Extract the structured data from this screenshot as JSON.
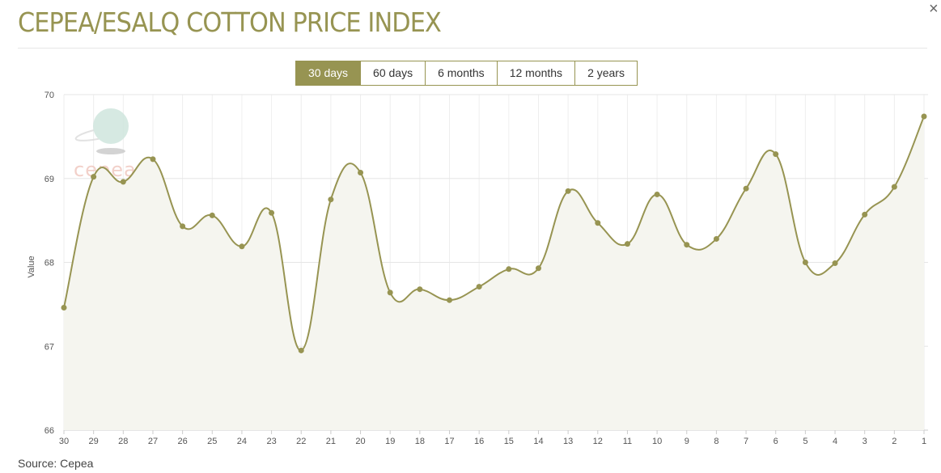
{
  "title": "CEPEA/ESALQ COTTON PRICE INDEX",
  "close_label": "×",
  "range_buttons": [
    {
      "label": "30 days",
      "active": true
    },
    {
      "label": "60 days",
      "active": false
    },
    {
      "label": "6 months",
      "active": false
    },
    {
      "label": "12 months",
      "active": false
    },
    {
      "label": "2 years",
      "active": false
    }
  ],
  "logo_text": "cepea",
  "source": "Source: Cepea",
  "colors": {
    "accent": "#979452",
    "fill": "#f5f5ef",
    "grid": "#e9e9e9"
  },
  "chart_data": {
    "type": "area",
    "title": "CEPEA/ESALQ COTTON PRICE INDEX",
    "xlabel": "",
    "ylabel": "Value",
    "ylim": [
      66,
      70
    ],
    "yticks": [
      "66",
      "67",
      "68",
      "69",
      "70"
    ],
    "grid": true,
    "categories": [
      "30",
      "29",
      "28",
      "27",
      "26",
      "25",
      "24",
      "23",
      "22",
      "21",
      "20",
      "19",
      "18",
      "17",
      "16",
      "15",
      "14",
      "13",
      "12",
      "11",
      "10",
      "9",
      "8",
      "7",
      "6",
      "5",
      "4",
      "3",
      "2",
      "1"
    ],
    "values": [
      67.46,
      69.02,
      68.96,
      69.23,
      68.43,
      68.56,
      68.19,
      68.59,
      66.95,
      68.75,
      69.07,
      67.64,
      67.68,
      67.55,
      67.71,
      67.92,
      67.93,
      68.85,
      68.47,
      68.22,
      68.81,
      68.21,
      68.28,
      68.88,
      69.29,
      68.0,
      67.99,
      68.57,
      68.9,
      69.74
    ]
  }
}
